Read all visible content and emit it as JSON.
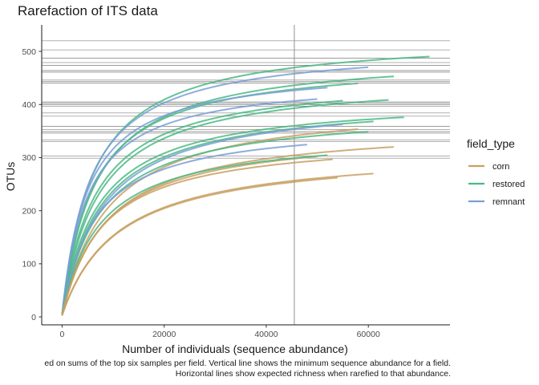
{
  "chart_data": {
    "type": "line",
    "title": "Rarefaction of ITS data",
    "xlabel": "Number of individuals (sequence abundance)",
    "ylabel": "OTUs",
    "xlim": [
      -4000,
      76000
    ],
    "ylim": [
      -15,
      550
    ],
    "x_ticks": [
      0,
      20000,
      40000,
      60000
    ],
    "x_tick_labels": [
      "0",
      "20000",
      "40000",
      "60000"
    ],
    "y_ticks": [
      0,
      100,
      200,
      300,
      400,
      500
    ],
    "y_tick_labels": [
      "0",
      "100",
      "200",
      "300",
      "400",
      "500"
    ],
    "grid": false,
    "legend": {
      "title": "field_type",
      "placement": "right",
      "entries": [
        {
          "label": "corn",
          "color": "#c8a063"
        },
        {
          "label": "restored",
          "color": "#4cb886"
        },
        {
          "label": "remnant",
          "color": "#7a9fd8"
        }
      ]
    },
    "vline_x": 45500,
    "hlines_y": [
      520,
      503,
      487,
      479,
      474,
      464,
      461,
      446,
      443,
      440,
      405,
      403,
      400,
      397,
      384,
      378,
      359,
      353,
      349,
      346,
      333,
      330,
      303,
      299
    ],
    "series": [
      {
        "field_type": "restored",
        "xmax": 72000,
        "asymptote": 528,
        "k": 6000
      },
      {
        "field_type": "remnant",
        "xmax": 60000,
        "asymptote": 510,
        "k": 5500
      },
      {
        "field_type": "restored",
        "xmax": 65000,
        "asymptote": 495,
        "k": 6500
      },
      {
        "field_type": "restored",
        "xmax": 58000,
        "asymptote": 482,
        "k": 6000
      },
      {
        "field_type": "remnant",
        "xmax": 52000,
        "asymptote": 470,
        "k": 5000
      },
      {
        "field_type": "restored",
        "xmax": 55000,
        "asymptote": 452,
        "k": 6500
      },
      {
        "field_type": "remnant",
        "xmax": 50000,
        "asymptote": 448,
        "k": 5000
      },
      {
        "field_type": "restored",
        "xmax": 64000,
        "asymptote": 450,
        "k": 7000
      },
      {
        "field_type": "restored",
        "xmax": 67000,
        "asymptote": 412,
        "k": 7000
      },
      {
        "field_type": "restored",
        "xmax": 61000,
        "asymptote": 410,
        "k": 7500
      },
      {
        "field_type": "corn",
        "xmax": 58000,
        "asymptote": 405,
        "k": 9000
      },
      {
        "field_type": "remnant",
        "xmax": 55000,
        "asymptote": 412,
        "k": 8000
      },
      {
        "field_type": "restored",
        "xmax": 60000,
        "asymptote": 389,
        "k": 7500
      },
      {
        "field_type": "corn",
        "xmax": 65000,
        "asymptote": 361,
        "k": 9000
      },
      {
        "field_type": "corn",
        "xmax": 50000,
        "asymptote": 350,
        "k": 8500
      },
      {
        "field_type": "remnant",
        "xmax": 48000,
        "asymptote": 365,
        "k": 6500
      },
      {
        "field_type": "restored",
        "xmax": 52000,
        "asymptote": 345,
        "k": 7500
      },
      {
        "field_type": "corn",
        "xmax": 53000,
        "asymptote": 338,
        "k": 8000
      },
      {
        "field_type": "corn",
        "xmax": 61000,
        "asymptote": 315,
        "k": 11000
      },
      {
        "field_type": "corn",
        "xmax": 54000,
        "asymptote": 312,
        "k": 11000
      }
    ]
  },
  "caption_line1": "ed on sums of the top six samples per field. Vertical line shows the minimum sequence abundance for a field.",
  "caption_line2": "Horizontal lines show expected richness when rarefied to that abundance."
}
